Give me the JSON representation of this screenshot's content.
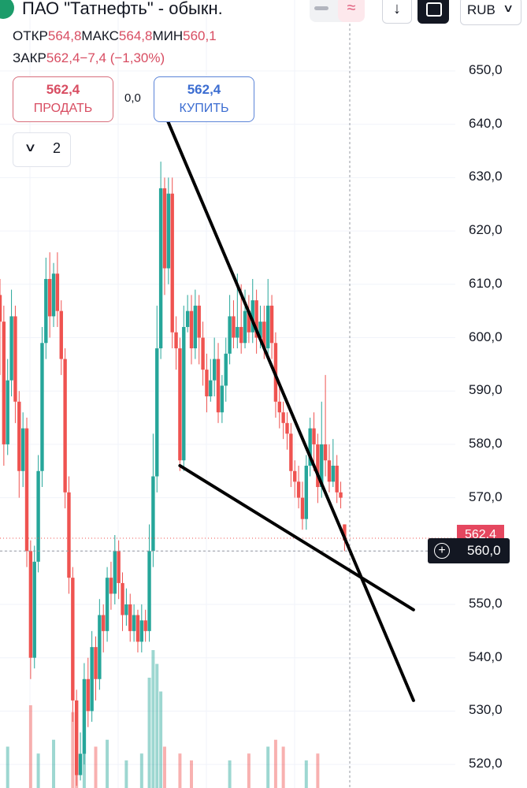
{
  "header": {
    "title": "ПАО \"Татнефть\" - обыкн.",
    "toggle_icon": "≈",
    "download_icon": "↓",
    "currency": "RUB",
    "currency_chevron": "∨"
  },
  "ohlc": {
    "open_label": "ОТКР",
    "open": "564,8",
    "high_label": "МАКС",
    "high": "564,8",
    "low_label": "МИН",
    "low": "560,1",
    "close_label": "ЗАКР",
    "close": "562,4",
    "change": "−7,4 (−1,30%)"
  },
  "trade": {
    "sell_price": "562,4",
    "sell_label": "ПРОДАТЬ",
    "spread": "0,0",
    "buy_price": "562,4",
    "buy_label": "КУПИТЬ"
  },
  "indicators": {
    "collapse_chevron": "∨",
    "count": "2"
  },
  "colors": {
    "up": "#26a69a",
    "down": "#ef5350",
    "trendline": "#000000",
    "grid": "#f0f3fa"
  },
  "chart_data": {
    "type": "candlestick",
    "y_axis_ticks": [
      "650,0",
      "640,0",
      "630,0",
      "620,0",
      "610,0",
      "600,0",
      "590,0",
      "580,0",
      "570,0",
      "560,0",
      "550,0",
      "540,0",
      "530,0",
      "520,0"
    ],
    "ylim": [
      516,
      652
    ],
    "last_price_tag": "562,4",
    "crosshair_price": "560,0",
    "crosshair_value": 560.0,
    "candles": [
      [
        608,
        603,
        611,
        593
      ],
      [
        603,
        580,
        606,
        576
      ],
      [
        580,
        592,
        596,
        578
      ],
      [
        592,
        604,
        609,
        589
      ],
      [
        604,
        588,
        606,
        584
      ],
      [
        588,
        575,
        590,
        570
      ],
      [
        575,
        583,
        586,
        572
      ],
      [
        583,
        560,
        585,
        557
      ],
      [
        560,
        540,
        562,
        536
      ],
      [
        540,
        558,
        561,
        538
      ],
      [
        558,
        575,
        578,
        556
      ],
      [
        575,
        599,
        602,
        572
      ],
      [
        599,
        611,
        615,
        596
      ],
      [
        611,
        604,
        616,
        600
      ],
      [
        604,
        612,
        614,
        602
      ],
      [
        612,
        605,
        616,
        602
      ],
      [
        605,
        596,
        607,
        593
      ],
      [
        596,
        571,
        598,
        568
      ],
      [
        571,
        555,
        574,
        552
      ],
      [
        555,
        532,
        557,
        528
      ],
      [
        532,
        518,
        534,
        516
      ],
      [
        518,
        522,
        526,
        517
      ],
      [
        522,
        536,
        539,
        520
      ],
      [
        536,
        530,
        540,
        527
      ],
      [
        530,
        542,
        545,
        528
      ],
      [
        542,
        536,
        544,
        532
      ],
      [
        536,
        548,
        551,
        534
      ],
      [
        548,
        545,
        550,
        541
      ],
      [
        545,
        555,
        557,
        543
      ],
      [
        555,
        552,
        558,
        549
      ],
      [
        552,
        560,
        563,
        550
      ],
      [
        560,
        554,
        562,
        551
      ],
      [
        554,
        548,
        556,
        545
      ],
      [
        548,
        550,
        553,
        546
      ],
      [
        550,
        545,
        552,
        543
      ],
      [
        545,
        548,
        550,
        543
      ],
      [
        548,
        543,
        549,
        541
      ],
      [
        543,
        547,
        550,
        541
      ],
      [
        547,
        545,
        549,
        543
      ],
      [
        545,
        560,
        565,
        543
      ],
      [
        560,
        574,
        582,
        557
      ],
      [
        574,
        598,
        606,
        571
      ],
      [
        598,
        628,
        633,
        596
      ],
      [
        628,
        613,
        630,
        608
      ],
      [
        613,
        627,
        630,
        610
      ],
      [
        627,
        601,
        630,
        598
      ],
      [
        601,
        598,
        604,
        594
      ],
      [
        598,
        577,
        600,
        575
      ],
      [
        577,
        602,
        606,
        575
      ],
      [
        602,
        605,
        608,
        601
      ],
      [
        605,
        598,
        608,
        595
      ],
      [
        598,
        606,
        609,
        596
      ],
      [
        606,
        600,
        608,
        595
      ],
      [
        600,
        594,
        603,
        591
      ],
      [
        594,
        589,
        597,
        586
      ],
      [
        589,
        592,
        596,
        588
      ],
      [
        592,
        596,
        600,
        589
      ],
      [
        596,
        586,
        599,
        584
      ],
      [
        586,
        591,
        593,
        584
      ],
      [
        591,
        597,
        600,
        588
      ],
      [
        597,
        604,
        608,
        595
      ],
      [
        604,
        600,
        607,
        598
      ],
      [
        600,
        602,
        612,
        598
      ],
      [
        602,
        599,
        610,
        597
      ],
      [
        599,
        605,
        609,
        598
      ],
      [
        605,
        601,
        608,
        599
      ],
      [
        601,
        607,
        611,
        599
      ],
      [
        607,
        600,
        609,
        597
      ],
      [
        600,
        603,
        606,
        598
      ],
      [
        603,
        598,
        606,
        596
      ],
      [
        598,
        606,
        611,
        596
      ],
      [
        606,
        599,
        608,
        596
      ],
      [
        599,
        588,
        601,
        585
      ],
      [
        588,
        586,
        591,
        583
      ],
      [
        586,
        584,
        588,
        581
      ],
      [
        584,
        582,
        586,
        579
      ],
      [
        582,
        575,
        584,
        572
      ],
      [
        575,
        573,
        577,
        570
      ],
      [
        573,
        570,
        576,
        568
      ],
      [
        570,
        566,
        573,
        564
      ],
      [
        566,
        576,
        578,
        564
      ],
      [
        576,
        583,
        585,
        574
      ],
      [
        583,
        580,
        586,
        575
      ],
      [
        580,
        572,
        582,
        569
      ],
      [
        572,
        580,
        588,
        570
      ],
      [
        580,
        577,
        593,
        574
      ],
      [
        577,
        573,
        580,
        571
      ],
      [
        573,
        576,
        581,
        572
      ],
      [
        576,
        571,
        578,
        569
      ],
      [
        571,
        570,
        573,
        568
      ],
      [
        565,
        562,
        565,
        560
      ]
    ],
    "volume_bars": [
      {
        "index": 2,
        "value": 0.3
      },
      {
        "index": 8,
        "value": 0.6
      },
      {
        "index": 10,
        "value": 0.25
      },
      {
        "index": 14,
        "value": 0.35
      },
      {
        "index": 19,
        "value": 0.55
      },
      {
        "index": 20,
        "value": 0.4
      },
      {
        "index": 22,
        "value": 0.5
      },
      {
        "index": 25,
        "value": 0.3
      },
      {
        "index": 28,
        "value": 0.35
      },
      {
        "index": 33,
        "value": 0.2
      },
      {
        "index": 37,
        "value": 0.25
      },
      {
        "index": 39,
        "value": 0.8
      },
      {
        "index": 40,
        "value": 1.0
      },
      {
        "index": 41,
        "value": 0.9
      },
      {
        "index": 42,
        "value": 0.7
      },
      {
        "index": 43,
        "value": 0.3
      },
      {
        "index": 47,
        "value": 0.25
      },
      {
        "index": 50,
        "value": 0.2
      },
      {
        "index": 60,
        "value": 0.2
      },
      {
        "index": 65,
        "value": 0.25
      },
      {
        "index": 70,
        "value": 0.3
      },
      {
        "index": 72,
        "value": 0.35
      },
      {
        "index": 74,
        "value": 0.3
      },
      {
        "index": 80,
        "value": 0.2
      },
      {
        "index": 83,
        "value": 0.25
      }
    ],
    "trendlines": [
      {
        "from": [
          43,
          642
        ],
        "to": [
          108,
          532
        ]
      },
      {
        "from": [
          47,
          576
        ],
        "to": [
          108,
          549
        ]
      }
    ]
  }
}
